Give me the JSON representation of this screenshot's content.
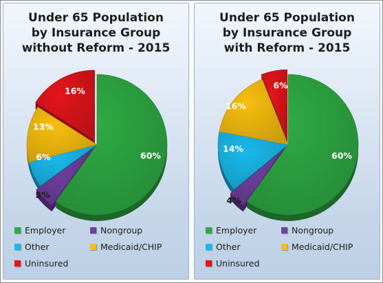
{
  "colors": {
    "employer": "#2eaa44",
    "nongroup": "#6f3fa0",
    "other": "#1ab8ea",
    "medicaid": "#f6be0e",
    "uninsured": "#e3151b"
  },
  "chart_data": [
    {
      "type": "pie",
      "title_lines": [
        "Under 65 Population",
        "by Insurance Group",
        "without Reform - 2015"
      ],
      "slices": [
        {
          "key": "employer",
          "name": "Employer",
          "value": 60,
          "label": "60%"
        },
        {
          "key": "nongroup",
          "name": "Nongroup",
          "value": 5,
          "label": "5%"
        },
        {
          "key": "other",
          "name": "Other",
          "value": 6,
          "label": "6%"
        },
        {
          "key": "medicaid",
          "name": "Medicaid/CHIP",
          "value": 13,
          "label": "13%"
        },
        {
          "key": "uninsured",
          "name": "Uninsured",
          "value": 16,
          "label": "16%"
        }
      ],
      "legend": [
        "Employer",
        "Nongroup",
        "Other",
        "Medicaid/CHIP",
        "Uninsured"
      ]
    },
    {
      "type": "pie",
      "title_lines": [
        "Under 65 Population",
        "by Insurance Group",
        "with Reform - 2015"
      ],
      "slices": [
        {
          "key": "employer",
          "name": "Employer",
          "value": 60,
          "label": "60%"
        },
        {
          "key": "nongroup",
          "name": "Nongroup",
          "value": 4,
          "label": "4%"
        },
        {
          "key": "other",
          "name": "Other",
          "value": 14,
          "label": "14%"
        },
        {
          "key": "medicaid",
          "name": "Medicaid/CHIP",
          "value": 16,
          "label": "16%"
        },
        {
          "key": "uninsured",
          "name": "Uninsured",
          "value": 6,
          "label": "6%"
        }
      ],
      "legend": [
        "Employer",
        "Nongroup",
        "Other",
        "Medicaid/CHIP",
        "Uninsured"
      ]
    }
  ]
}
